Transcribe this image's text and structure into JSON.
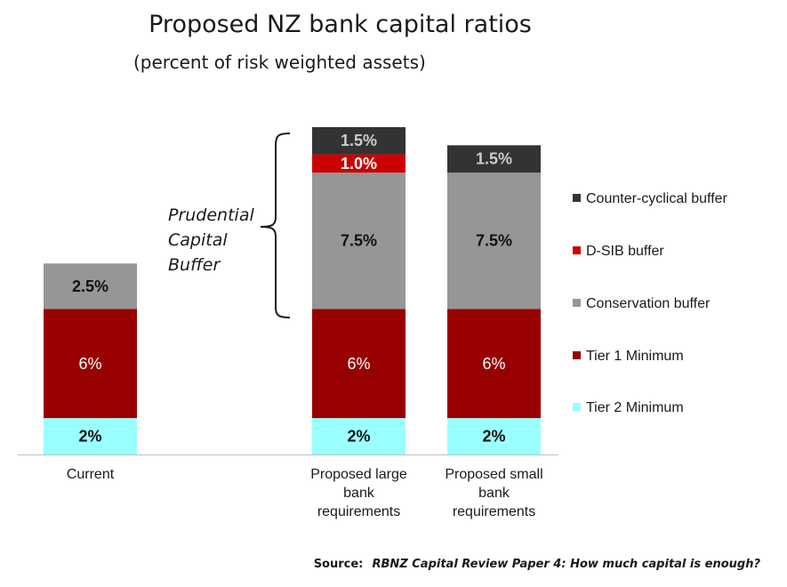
{
  "chart_data": {
    "type": "bar",
    "stacked": true,
    "title": "Proposed NZ bank capital ratios",
    "subtitle": "(percent of risk weighted assets)",
    "categories": [
      "Current",
      "Proposed large bank requirements",
      "Proposed small bank requirements"
    ],
    "series": [
      {
        "name": "Tier 2 Minimum",
        "color": "#99FFFF",
        "values": [
          2,
          2,
          2
        ],
        "labels": [
          "2%",
          "2%",
          "2%"
        ],
        "label_color": "#111111",
        "label_bold": true
      },
      {
        "name": "Tier 1 Minimum",
        "color": "#990000",
        "values": [
          6,
          6,
          6
        ],
        "labels": [
          "6%",
          "6%",
          "6%"
        ],
        "label_color": "#ffffff",
        "label_bold": false
      },
      {
        "name": "Conservation buffer",
        "color": "#969696",
        "values": [
          2.5,
          7.5,
          7.5
        ],
        "labels": [
          "2.5%",
          "7.5%",
          "7.5%"
        ],
        "label_color": "#111111",
        "label_bold": true
      },
      {
        "name": "D-SIB buffer",
        "color": "#CC0000",
        "values": [
          0,
          1.0,
          0
        ],
        "labels": [
          "",
          "1.0%",
          ""
        ],
        "label_color": "#ffffff",
        "label_bold": true
      },
      {
        "name": "Counter-cyclical buffer",
        "color": "#333333",
        "values": [
          0,
          1.5,
          1.5
        ],
        "labels": [
          "",
          "1.5%",
          "1.5%"
        ],
        "label_color": "#cccccc",
        "label_bold": true
      }
    ],
    "legend_position": "right",
    "legend_order": [
      "Counter-cyclical buffer",
      "D-SIB buffer",
      "Conservation buffer",
      "Tier 1 Minimum",
      "Tier 2 Minimum"
    ],
    "annotation": "Prudential Capital Buffer",
    "grid": false,
    "ylim": [
      0,
      19
    ]
  },
  "category_lines": [
    [
      "Current"
    ],
    [
      "Proposed large",
      "bank",
      "requirements"
    ],
    [
      "Proposed small",
      "bank",
      "requirements"
    ]
  ],
  "annotation_lines": [
    "Prudential",
    "Capital",
    "Buffer"
  ],
  "source": {
    "label": "Source:",
    "text": "RBNZ Capital Review Paper 4: How much capital is enough?"
  }
}
